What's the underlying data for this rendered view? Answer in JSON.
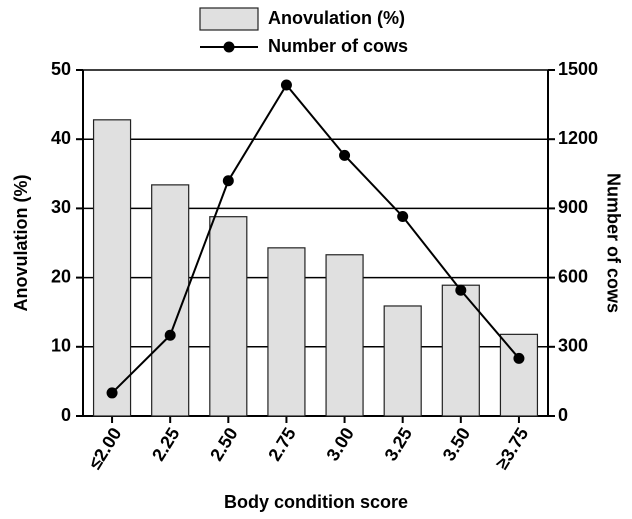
{
  "chart_data": {
    "type": "bar_line",
    "categories": [
      "≤2.00",
      "2.25",
      "2.50",
      "2.75",
      "3.00",
      "3.25",
      "3.50",
      "≥3.75"
    ],
    "series": [
      {
        "name": "Anovulation (%)",
        "type": "bar",
        "color": "#e0e0e0",
        "values": [
          42.8,
          33.4,
          28.8,
          24.3,
          23.3,
          15.9,
          18.9,
          11.8
        ]
      },
      {
        "name": "Number of cows",
        "type": "line",
        "color": "#000000",
        "axis": "y2",
        "values": [
          100,
          350,
          1020,
          1435,
          1130,
          865,
          545,
          250
        ]
      }
    ],
    "ylabel": "Anovulation (%)",
    "y2label": "Number of cows",
    "xlabel": "Body condition score",
    "ylim": [
      0,
      50
    ],
    "yticks": [
      0,
      10,
      20,
      30,
      40,
      50
    ],
    "y2lim": [
      0,
      1500
    ],
    "y2ticks": [
      0,
      300,
      600,
      900,
      1200,
      1500
    ],
    "grid": true,
    "legend": "top"
  }
}
